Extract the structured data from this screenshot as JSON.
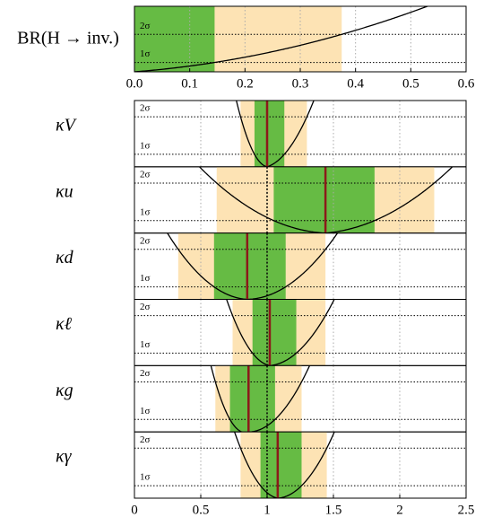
{
  "chart_data": [
    {
      "type": "interval",
      "ylabel": "BR(H → inv.)",
      "xlim": [
        0,
        0.6
      ],
      "xticks": [
        {
          "value": 0,
          "label": "0.0"
        },
        0.1,
        0.2,
        0.3,
        0.4,
        0.5,
        0.6
      ],
      "ylim": [
        0,
        7
      ],
      "yticks": [
        {
          "value": 1,
          "label": "1σ"
        },
        {
          "value": 4,
          "label": "2σ"
        }
      ],
      "colors": {
        "sigma1": "#66bb44",
        "sigma2": "#fde3b4",
        "best": "#8b1a1a"
      },
      "grid": true,
      "panels": [
        {
          "sigma1": [
            0,
            0.145
          ],
          "sigma2": [
            0,
            0.375
          ]
        }
      ]
    },
    {
      "type": "interval",
      "xlim": [
        0,
        2.5
      ],
      "xticks": [
        0,
        0.5,
        1,
        1.5,
        2,
        2.5
      ],
      "ylim": [
        0,
        5.3
      ],
      "yticks": [
        {
          "value": 1,
          "label": "1σ"
        },
        {
          "value": 4,
          "label": "2σ"
        }
      ],
      "colors": {
        "sigma1": "#66bb44",
        "sigma2": "#fde3b4",
        "best": "#8b1a1a"
      },
      "grid": true,
      "reference": 1,
      "panels": [
        {
          "name": "κV",
          "best": 1.0,
          "sigma1": [
            0.905,
            1.13
          ],
          "sigma2": [
            0.8,
            1.3
          ]
        },
        {
          "name": "κu",
          "best": 1.44,
          "sigma1": [
            1.05,
            1.81
          ],
          "sigma2": [
            0.62,
            2.26
          ]
        },
        {
          "name": "κd",
          "best": 0.85,
          "sigma1": [
            0.6,
            1.14
          ],
          "sigma2": [
            0.33,
            1.44
          ]
        },
        {
          "name": "κℓ",
          "best": 1.02,
          "sigma1": [
            0.89,
            1.22
          ],
          "sigma2": [
            0.74,
            1.44
          ]
        },
        {
          "name": "κg",
          "best": 0.86,
          "sigma1": [
            0.72,
            1.06
          ],
          "sigma2": [
            0.61,
            1.26
          ]
        },
        {
          "name": "κγ",
          "best": 1.08,
          "sigma1": [
            0.95,
            1.26
          ],
          "sigma2": [
            0.8,
            1.45
          ]
        }
      ]
    }
  ]
}
